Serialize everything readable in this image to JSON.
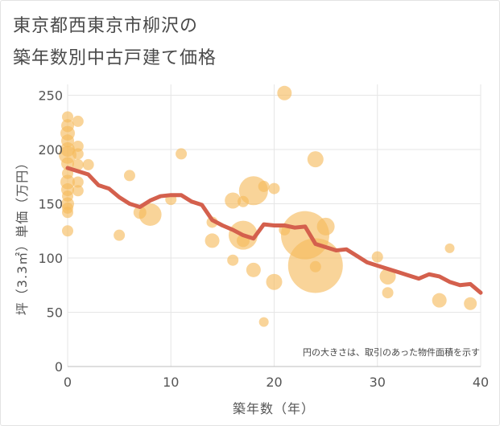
{
  "header": {
    "title_line1": "東京都西東京市柳沢の",
    "title_line2": "築年数別中古戸建て価格"
  },
  "chart_data": {
    "type": "scatter",
    "xlabel": "築年数（年）",
    "ylabel": "坪（3.3㎡）単価（万円）",
    "xlim": [
      0,
      40
    ],
    "ylim": [
      0,
      260
    ],
    "x_ticks": [
      0,
      10,
      20,
      30,
      40
    ],
    "y_ticks": [
      0,
      50,
      100,
      150,
      200,
      250
    ],
    "grid": true,
    "note": "円の大きさは、取引のあった物件面積を示す",
    "colors": {
      "bubble": "#f5b95a",
      "trend": "#d4604d",
      "grid": "#e6e6e6"
    },
    "points": [
      {
        "x": 0,
        "y": 230,
        "s": 7
      },
      {
        "x": 0,
        "y": 222,
        "s": 8
      },
      {
        "x": 0,
        "y": 215,
        "s": 9
      },
      {
        "x": 0,
        "y": 208,
        "s": 8
      },
      {
        "x": 0,
        "y": 200,
        "s": 9
      },
      {
        "x": 0,
        "y": 195,
        "s": 11
      },
      {
        "x": 0,
        "y": 187,
        "s": 8
      },
      {
        "x": 0,
        "y": 178,
        "s": 7
      },
      {
        "x": 0,
        "y": 170,
        "s": 9
      },
      {
        "x": 0,
        "y": 163,
        "s": 8
      },
      {
        "x": 0,
        "y": 157,
        "s": 7
      },
      {
        "x": 0,
        "y": 150,
        "s": 8
      },
      {
        "x": 0,
        "y": 146,
        "s": 7
      },
      {
        "x": 0,
        "y": 142,
        "s": 7
      },
      {
        "x": 0,
        "y": 125,
        "s": 7
      },
      {
        "x": 1,
        "y": 226,
        "s": 7
      },
      {
        "x": 1,
        "y": 203,
        "s": 7
      },
      {
        "x": 1,
        "y": 196,
        "s": 7
      },
      {
        "x": 1,
        "y": 186,
        "s": 7
      },
      {
        "x": 1,
        "y": 170,
        "s": 7
      },
      {
        "x": 1,
        "y": 162,
        "s": 7
      },
      {
        "x": 2,
        "y": 186,
        "s": 7
      },
      {
        "x": 6,
        "y": 176,
        "s": 7
      },
      {
        "x": 5,
        "y": 121,
        "s": 7
      },
      {
        "x": 7,
        "y": 142,
        "s": 8
      },
      {
        "x": 8,
        "y": 140,
        "s": 14
      },
      {
        "x": 10,
        "y": 154,
        "s": 7
      },
      {
        "x": 11,
        "y": 196,
        "s": 7
      },
      {
        "x": 14,
        "y": 133,
        "s": 7
      },
      {
        "x": 14,
        "y": 116,
        "s": 9
      },
      {
        "x": 16,
        "y": 153,
        "s": 10
      },
      {
        "x": 16,
        "y": 98,
        "s": 7
      },
      {
        "x": 17,
        "y": 152,
        "s": 7
      },
      {
        "x": 17,
        "y": 121,
        "s": 18
      },
      {
        "x": 17,
        "y": 116,
        "s": 8
      },
      {
        "x": 18,
        "y": 162,
        "s": 18
      },
      {
        "x": 18,
        "y": 89,
        "s": 9
      },
      {
        "x": 19,
        "y": 166,
        "s": 7
      },
      {
        "x": 19,
        "y": 41,
        "s": 6
      },
      {
        "x": 20,
        "y": 164,
        "s": 7
      },
      {
        "x": 20,
        "y": 78,
        "s": 10
      },
      {
        "x": 21,
        "y": 252,
        "s": 9
      },
      {
        "x": 21,
        "y": 126,
        "s": 7
      },
      {
        "x": 23,
        "y": 121,
        "s": 30
      },
      {
        "x": 24,
        "y": 191,
        "s": 10
      },
      {
        "x": 24,
        "y": 93,
        "s": 34
      },
      {
        "x": 24,
        "y": 92,
        "s": 7
      },
      {
        "x": 25,
        "y": 129,
        "s": 11
      },
      {
        "x": 30,
        "y": 101,
        "s": 7
      },
      {
        "x": 31,
        "y": 83,
        "s": 10
      },
      {
        "x": 31,
        "y": 68,
        "s": 7
      },
      {
        "x": 36,
        "y": 61,
        "s": 9
      },
      {
        "x": 37,
        "y": 109,
        "s": 6
      },
      {
        "x": 39,
        "y": 58,
        "s": 8
      }
    ],
    "trend": {
      "x": [
        0,
        1,
        2,
        3,
        4,
        5,
        6,
        7,
        8,
        9,
        10,
        11,
        12,
        13,
        14,
        15,
        16,
        17,
        18,
        19,
        20,
        21,
        22,
        23,
        24,
        25,
        26,
        27,
        28,
        29,
        30,
        31,
        32,
        33,
        34,
        35,
        36,
        37,
        38,
        39,
        40
      ],
      "y": [
        183,
        180,
        177,
        167,
        164,
        156,
        150,
        147,
        153,
        157,
        158,
        158,
        152,
        149,
        135,
        130,
        126,
        121,
        118,
        131,
        130,
        130,
        128,
        129,
        113,
        110,
        107,
        108,
        102,
        96,
        93,
        90,
        87,
        84,
        81,
        85,
        83,
        78,
        75,
        76,
        68
      ]
    }
  }
}
